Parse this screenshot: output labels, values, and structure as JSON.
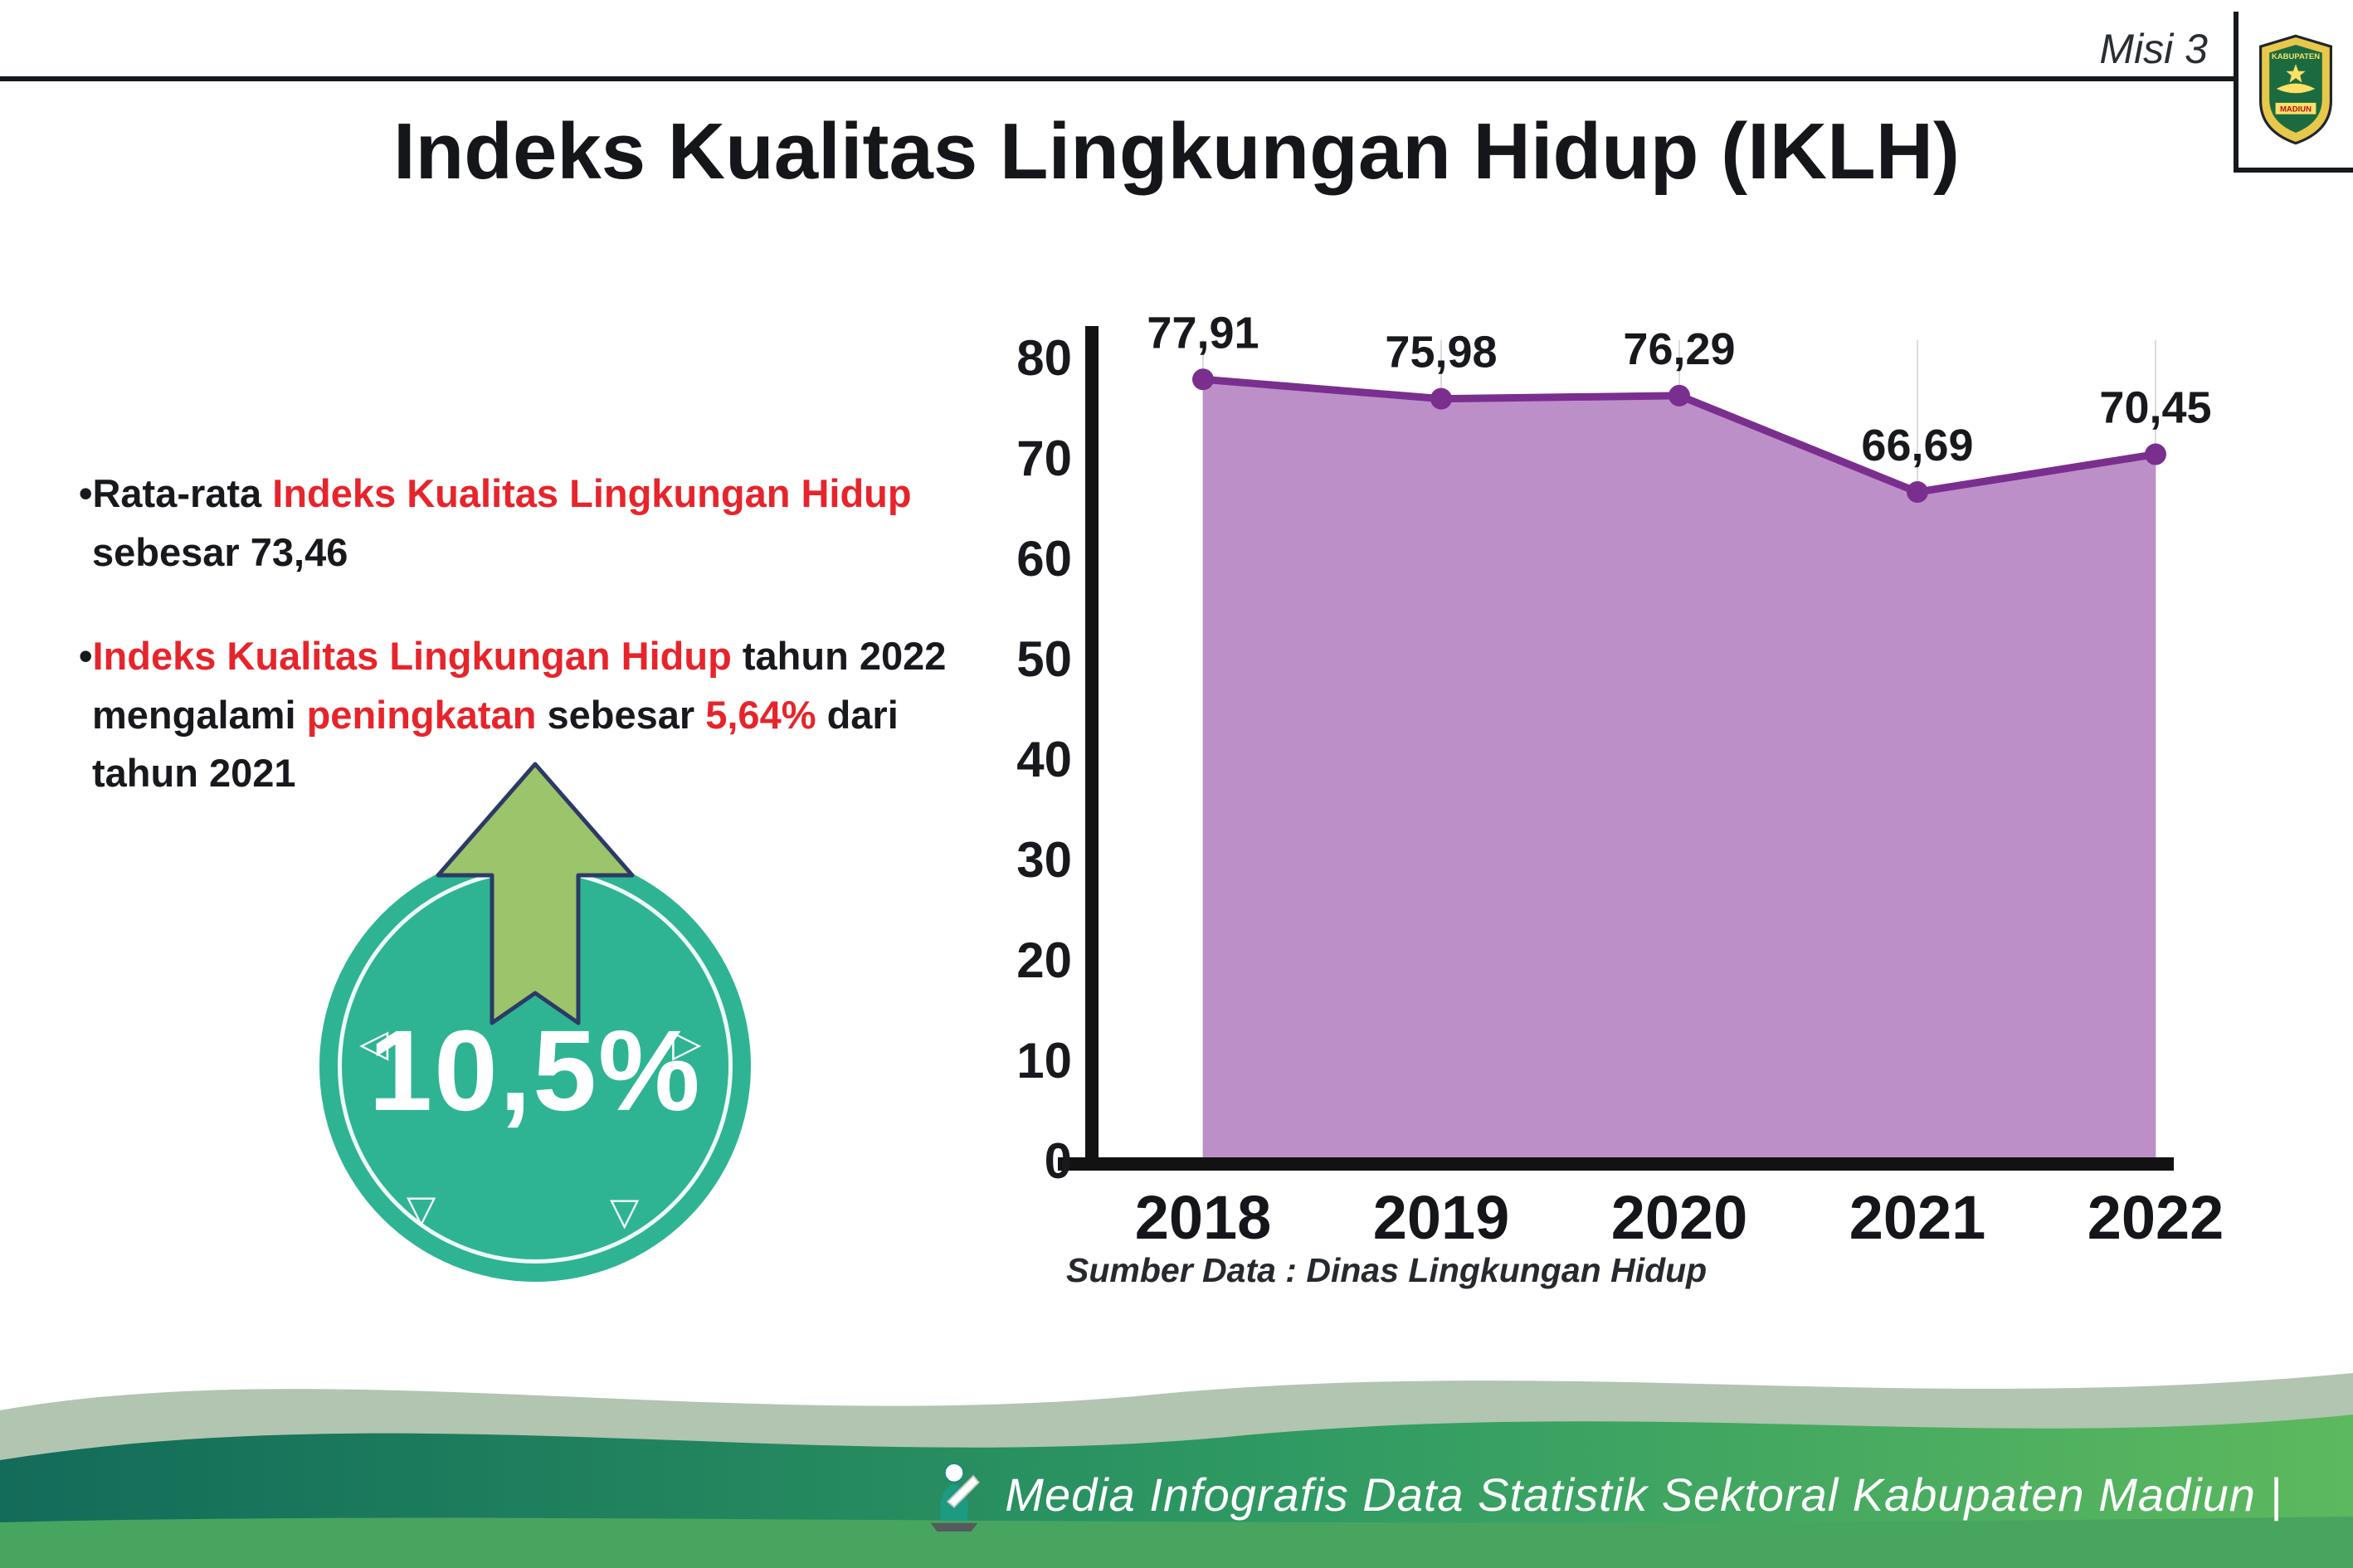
{
  "header": {
    "misi": "Misi 3",
    "title": "Indeks Kualitas Lingkungan Hidup (IKLH)",
    "logo": {
      "top": "KABUPATEN",
      "bottom": "MADIUN"
    }
  },
  "bullets": {
    "b1_pre": "•Rata-rata ",
    "b1_red": "Indeks Kualitas Lingkungan Hidup",
    "b1_line2": "sebesar 73,46",
    "b2_bullet": "•",
    "b2_red1": "Indeks Kualitas Lingkungan Hidup",
    "b2_black1": " tahun 2022",
    "b2_pre2": "mengalami ",
    "b2_red2": "peningkatan",
    "b2_mid2": " sebesar ",
    "b2_red3": "5,64%",
    "b2_post2": " dari",
    "b2_line3": "tahun 2021"
  },
  "badge": {
    "value": "10,5%",
    "triangles": [
      "◁",
      "▷",
      "▽",
      "▽"
    ],
    "circle_color": "#2eb493",
    "arrow_color": "#9cc46a"
  },
  "chart_data": {
    "type": "area",
    "title": "Indeks Kualitas Lingkungan Hidup (IKLH)",
    "categories": [
      "2018",
      "2019",
      "2020",
      "2021",
      "2022"
    ],
    "values": [
      77.91,
      75.98,
      76.29,
      66.69,
      70.45
    ],
    "labels": [
      "77,91",
      "75,98",
      "76,29",
      "66,69",
      "70,45"
    ],
    "ylim": [
      0,
      80
    ],
    "yticks": [
      0,
      10,
      20,
      30,
      40,
      50,
      60,
      70,
      80
    ],
    "xlabel": "",
    "ylabel": "",
    "grid": "light-vertical",
    "legend": "none",
    "source": "Sumber Data : Dinas Lingkungan Hidup",
    "colors": {
      "fill": "#bd8fc9",
      "line": "#7a2f8f",
      "marker": "#7a2f8f",
      "axis": "#121212"
    }
  },
  "source": "Sumber Data : Dinas Lingkungan Hidup",
  "footer": {
    "text": "Media Infografis Data Statistik Sektoral Kabupaten Madiun |"
  },
  "colors": {
    "accent_red": "#e7242b",
    "teal_badge": "#2eb493",
    "purple_fill": "#bd8fc9",
    "purple_line": "#7a2f8f",
    "footer_green_dark": "#136b59",
    "footer_green_light": "#5db95e"
  }
}
